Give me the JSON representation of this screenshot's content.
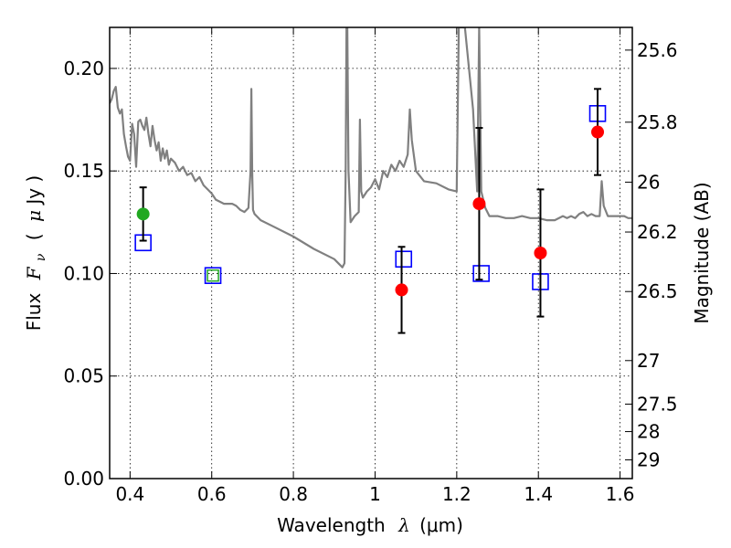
{
  "chart_data": {
    "type": "scatter",
    "xlabel": "Wavelength  λ (μm)",
    "ylabel": "Flux  F_ν  ( μJy )",
    "ylabel_parts": {
      "pre": "Flux",
      "sym": "F",
      "sub": "ν",
      "unit_open": "(",
      "unit_mu": "μ",
      "unit": "Jy )"
    },
    "xlabel_parts": {
      "pre": "Wavelength",
      "sym": "λ",
      "unit": "(μm)"
    },
    "y2label": "Magnitude (AB)",
    "xlim": [
      0.35,
      1.63
    ],
    "ylim": [
      0.0,
      0.22
    ],
    "grid": true,
    "x_ticks": [
      {
        "value": 0.4,
        "label": "0.4"
      },
      {
        "value": 0.6,
        "label": "0.6"
      },
      {
        "value": 0.8,
        "label": "0.8"
      },
      {
        "value": 1.0,
        "label": "1"
      },
      {
        "value": 1.2,
        "label": "1.2"
      },
      {
        "value": 1.4,
        "label": "1.4"
      },
      {
        "value": 1.6,
        "label": "1.6"
      }
    ],
    "y_ticks": [
      {
        "value": 0.0,
        "label": "0.00"
      },
      {
        "value": 0.05,
        "label": "0.05"
      },
      {
        "value": 0.1,
        "label": "0.10"
      },
      {
        "value": 0.15,
        "label": "0.15"
      },
      {
        "value": 0.2,
        "label": "0.20"
      }
    ],
    "mag_ticks": [
      {
        "value": 25.6,
        "label": "25.6"
      },
      {
        "value": 25.8,
        "label": "25.8"
      },
      {
        "value": 26.0,
        "label": "26"
      },
      {
        "value": 26.2,
        "label": "26.2"
      },
      {
        "value": 26.5,
        "label": "26.5"
      },
      {
        "value": 27.0,
        "label": "27"
      },
      {
        "value": 27.5,
        "label": "27.5"
      },
      {
        "value": 28.0,
        "label": "28"
      },
      {
        "value": 29.0,
        "label": "29"
      }
    ],
    "colors": {
      "spectrum": "#808080",
      "observed_red": "#ff0000",
      "observed_green": "#21a821",
      "model_box": "#0000ff",
      "model_box_green": "#22aa22",
      "errorbar": "#000000"
    },
    "spectrum": {
      "x": [
        0.35,
        0.355,
        0.36,
        0.365,
        0.37,
        0.375,
        0.38,
        0.385,
        0.39,
        0.395,
        0.4,
        0.405,
        0.41,
        0.415,
        0.42,
        0.425,
        0.43,
        0.435,
        0.44,
        0.445,
        0.45,
        0.455,
        0.46,
        0.465,
        0.47,
        0.475,
        0.48,
        0.485,
        0.49,
        0.495,
        0.5,
        0.51,
        0.52,
        0.53,
        0.54,
        0.55,
        0.56,
        0.57,
        0.58,
        0.59,
        0.6,
        0.61,
        0.62,
        0.63,
        0.64,
        0.65,
        0.66,
        0.67,
        0.68,
        0.69,
        0.695,
        0.697,
        0.699,
        0.701,
        0.705,
        0.72,
        0.75,
        0.8,
        0.85,
        0.9,
        0.92,
        0.925,
        0.928,
        0.93,
        0.932,
        0.935,
        0.94,
        0.95,
        0.96,
        0.963,
        0.966,
        0.97,
        0.98,
        0.99,
        1.0,
        1.01,
        1.02,
        1.03,
        1.04,
        1.05,
        1.06,
        1.07,
        1.08,
        1.085,
        1.09,
        1.1,
        1.12,
        1.15,
        1.18,
        1.2,
        1.205,
        1.21,
        1.22,
        1.24,
        1.25,
        1.255,
        1.26,
        1.27,
        1.28,
        1.3,
        1.32,
        1.34,
        1.36,
        1.38,
        1.4,
        1.42,
        1.44,
        1.46,
        1.47,
        1.48,
        1.49,
        1.5,
        1.51,
        1.52,
        1.53,
        1.54,
        1.55,
        1.555,
        1.56,
        1.57,
        1.58,
        1.59,
        1.6,
        1.61,
        1.62,
        1.63
      ],
      "y": [
        0.183,
        0.185,
        0.189,
        0.191,
        0.181,
        0.178,
        0.18,
        0.168,
        0.162,
        0.157,
        0.155,
        0.173,
        0.168,
        0.152,
        0.174,
        0.175,
        0.172,
        0.17,
        0.176,
        0.168,
        0.162,
        0.172,
        0.165,
        0.16,
        0.164,
        0.155,
        0.161,
        0.156,
        0.16,
        0.153,
        0.156,
        0.154,
        0.15,
        0.152,
        0.148,
        0.149,
        0.145,
        0.147,
        0.143,
        0.141,
        0.139,
        0.136,
        0.135,
        0.134,
        0.134,
        0.134,
        0.133,
        0.131,
        0.13,
        0.132,
        0.15,
        0.19,
        0.15,
        0.131,
        0.129,
        0.126,
        0.123,
        0.118,
        0.112,
        0.107,
        0.103,
        0.105,
        0.15,
        0.22,
        0.22,
        0.15,
        0.125,
        0.128,
        0.13,
        0.175,
        0.14,
        0.137,
        0.14,
        0.142,
        0.146,
        0.141,
        0.15,
        0.147,
        0.153,
        0.15,
        0.155,
        0.152,
        0.158,
        0.18,
        0.165,
        0.15,
        0.145,
        0.144,
        0.141,
        0.14,
        0.22,
        0.22,
        0.22,
        0.18,
        0.14,
        0.22,
        0.14,
        0.132,
        0.128,
        0.128,
        0.127,
        0.127,
        0.128,
        0.127,
        0.127,
        0.126,
        0.126,
        0.128,
        0.127,
        0.128,
        0.127,
        0.129,
        0.13,
        0.128,
        0.129,
        0.128,
        0.128,
        0.145,
        0.133,
        0.128,
        0.128,
        0.128,
        0.128,
        0.128,
        0.127,
        0.127
      ]
    },
    "observed": [
      {
        "x": 0.432,
        "y": 0.129,
        "err": 0.013,
        "color": "green"
      },
      {
        "x": 1.065,
        "y": 0.092,
        "err": 0.021,
        "color": "red"
      },
      {
        "x": 1.255,
        "y": 0.134,
        "err": 0.037,
        "color": "red"
      },
      {
        "x": 1.405,
        "y": 0.11,
        "err": 0.031,
        "color": "red"
      },
      {
        "x": 1.545,
        "y": 0.169,
        "err": 0.021,
        "color": "red"
      }
    ],
    "model": [
      {
        "x": 0.432,
        "y": 0.115,
        "color": "blue"
      },
      {
        "x": 0.603,
        "y": 0.099,
        "color": "blue",
        "inner": "green"
      },
      {
        "x": 1.07,
        "y": 0.107,
        "color": "blue"
      },
      {
        "x": 1.26,
        "y": 0.1,
        "color": "blue"
      },
      {
        "x": 1.405,
        "y": 0.096,
        "color": "blue"
      },
      {
        "x": 1.545,
        "y": 0.178,
        "color": "blue"
      }
    ]
  }
}
